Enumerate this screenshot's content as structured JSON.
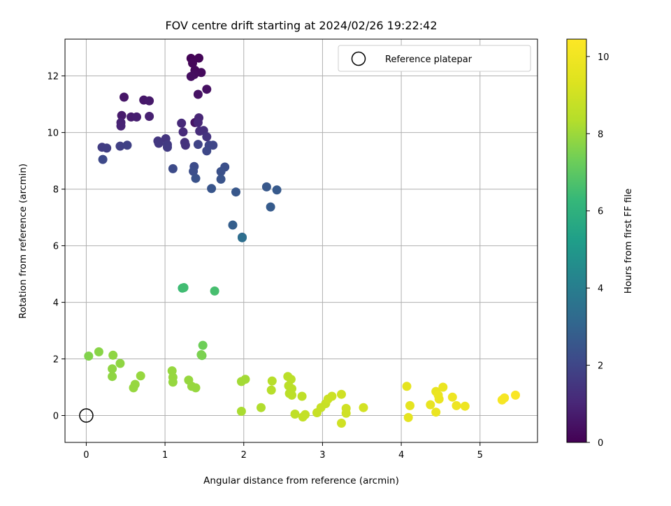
{
  "chart_data": {
    "type": "scatter",
    "title": "FOV centre drift starting at 2024/02/26 19:22:42",
    "xlabel": "Angular distance from reference (arcmin)",
    "ylabel": "Rotation from reference (arcmin)",
    "xlim": [
      -0.27,
      5.73
    ],
    "ylim": [
      -0.95,
      13.3
    ],
    "xticks": [
      "0",
      "1",
      "2",
      "3",
      "4",
      "5"
    ],
    "yticks": [
      "0",
      "2",
      "4",
      "6",
      "8",
      "10",
      "12"
    ],
    "grid": true,
    "legend": {
      "position": "top-right",
      "entries": [
        "Reference platepar"
      ]
    },
    "reference": {
      "x": 0,
      "y": 0
    },
    "colorbar": {
      "label": "Hours from first FF file",
      "range": [
        0,
        10.45
      ],
      "ticks": [
        "0",
        "2",
        "4",
        "6",
        "8",
        "10"
      ],
      "colormap": "viridis"
    },
    "points": [
      [
        1.33,
        12.62,
        0.05
      ],
      [
        1.43,
        12.63,
        0.1
      ],
      [
        1.35,
        12.45,
        0.15
      ],
      [
        1.38,
        12.2,
        0.2
      ],
      [
        1.46,
        12.12,
        0.25
      ],
      [
        1.37,
        12.05,
        0.3
      ],
      [
        1.33,
        11.98,
        0.35
      ],
      [
        1.53,
        11.53,
        0.4
      ],
      [
        1.42,
        11.35,
        0.45
      ],
      [
        1.38,
        10.35,
        0.5
      ],
      [
        0.48,
        11.25,
        0.55
      ],
      [
        0.73,
        11.15,
        0.6
      ],
      [
        0.8,
        11.12,
        0.65
      ],
      [
        0.45,
        10.6,
        0.7
      ],
      [
        0.57,
        10.55,
        0.75
      ],
      [
        0.64,
        10.55,
        0.8
      ],
      [
        0.8,
        10.57,
        0.85
      ],
      [
        0.44,
        10.35,
        0.9
      ],
      [
        0.44,
        10.23,
        0.95
      ],
      [
        1.43,
        10.52,
        1.0
      ],
      [
        1.42,
        10.35,
        1.05
      ],
      [
        1.21,
        10.33,
        1.1
      ],
      [
        1.23,
        10.02,
        1.15
      ],
      [
        1.44,
        10.05,
        1.2
      ],
      [
        1.49,
        10.07,
        1.25
      ],
      [
        1.25,
        9.65,
        1.3
      ],
      [
        1.26,
        9.55,
        1.35
      ],
      [
        1.53,
        9.85,
        1.4
      ],
      [
        1.01,
        9.78,
        1.45
      ],
      [
        0.91,
        9.7,
        1.5
      ],
      [
        0.92,
        9.62,
        1.55
      ],
      [
        1.03,
        9.57,
        1.6
      ],
      [
        1.03,
        9.48,
        1.65
      ],
      [
        0.2,
        9.48,
        1.7
      ],
      [
        0.26,
        9.45,
        1.75
      ],
      [
        0.43,
        9.52,
        1.8
      ],
      [
        0.52,
        9.55,
        1.85
      ],
      [
        1.42,
        9.58,
        1.9
      ],
      [
        1.56,
        9.55,
        1.95
      ],
      [
        1.61,
        9.55,
        2.0
      ],
      [
        1.53,
        9.35,
        2.05
      ],
      [
        0.21,
        9.05,
        2.1
      ],
      [
        1.1,
        8.72,
        2.15
      ],
      [
        1.37,
        8.8,
        2.2
      ],
      [
        1.36,
        8.63,
        2.25
      ],
      [
        1.76,
        8.78,
        2.3
      ],
      [
        1.71,
        8.62,
        2.35
      ],
      [
        1.39,
        8.38,
        2.4
      ],
      [
        1.71,
        8.35,
        2.45
      ],
      [
        1.59,
        8.02,
        2.5
      ],
      [
        1.9,
        7.9,
        2.55
      ],
      [
        2.29,
        8.08,
        2.6
      ],
      [
        2.42,
        7.97,
        2.65
      ],
      [
        2.34,
        7.37,
        2.7
      ],
      [
        1.86,
        6.73,
        2.8
      ],
      [
        1.98,
        6.3,
        3.0
      ],
      [
        1.98,
        6.28,
        3.4
      ],
      [
        1.22,
        4.5,
        6.4
      ],
      [
        1.24,
        4.52,
        6.5
      ],
      [
        1.63,
        4.4,
        6.6
      ],
      [
        1.48,
        2.48,
        7.3
      ],
      [
        1.47,
        2.12,
        7.4
      ],
      [
        1.46,
        2.15,
        7.5
      ],
      [
        0.03,
        2.1,
        7.6
      ],
      [
        0.16,
        2.25,
        7.7
      ],
      [
        0.34,
        2.13,
        7.8
      ],
      [
        0.43,
        1.84,
        7.8
      ],
      [
        0.33,
        1.65,
        7.8
      ],
      [
        0.33,
        1.38,
        7.8
      ],
      [
        1.09,
        1.58,
        7.9
      ],
      [
        1.1,
        1.35,
        7.9
      ],
      [
        1.1,
        1.18,
        7.9
      ],
      [
        1.3,
        1.25,
        7.9
      ],
      [
        1.34,
        1.03,
        7.9
      ],
      [
        1.39,
        0.98,
        7.9
      ],
      [
        0.69,
        1.4,
        7.9
      ],
      [
        0.62,
        1.1,
        7.9
      ],
      [
        0.6,
        0.98,
        7.9
      ],
      [
        1.97,
        1.2,
        8.1
      ],
      [
        2.02,
        1.28,
        8.1
      ],
      [
        1.97,
        0.15,
        8.2
      ],
      [
        2.22,
        0.28,
        8.3
      ],
      [
        2.35,
        0.9,
        8.4
      ],
      [
        2.36,
        1.22,
        8.4
      ],
      [
        2.56,
        1.38,
        8.5
      ],
      [
        2.6,
        1.28,
        8.5
      ],
      [
        2.57,
        1.05,
        8.5
      ],
      [
        2.61,
        0.95,
        8.5
      ],
      [
        2.58,
        0.78,
        8.5
      ],
      [
        2.61,
        0.72,
        8.5
      ],
      [
        2.74,
        0.68,
        8.6
      ],
      [
        2.65,
        0.05,
        8.6
      ],
      [
        2.75,
        -0.05,
        8.7
      ],
      [
        2.78,
        0.03,
        8.7
      ],
      [
        2.93,
        0.1,
        8.8
      ],
      [
        2.98,
        0.28,
        8.8
      ],
      [
        3.04,
        0.42,
        8.8
      ],
      [
        3.07,
        0.58,
        8.9
      ],
      [
        3.12,
        0.68,
        8.9
      ],
      [
        3.24,
        0.75,
        9.0
      ],
      [
        3.3,
        0.25,
        9.0
      ],
      [
        3.3,
        0.08,
        9.0
      ],
      [
        3.24,
        -0.27,
        9.0
      ],
      [
        3.52,
        0.28,
        9.1
      ],
      [
        4.07,
        1.03,
        9.6
      ],
      [
        4.11,
        0.35,
        9.6
      ],
      [
        4.09,
        -0.07,
        9.6
      ],
      [
        4.37,
        0.38,
        9.7
      ],
      [
        4.44,
        0.85,
        9.7
      ],
      [
        4.53,
        1.0,
        9.8
      ],
      [
        4.48,
        0.58,
        9.8
      ],
      [
        4.47,
        0.72,
        9.8
      ],
      [
        4.44,
        0.12,
        9.8
      ],
      [
        4.65,
        0.65,
        9.9
      ],
      [
        4.7,
        0.35,
        9.9
      ],
      [
        4.81,
        0.33,
        9.9
      ],
      [
        5.28,
        0.55,
        10.2
      ],
      [
        5.31,
        0.62,
        10.2
      ],
      [
        5.45,
        0.72,
        10.3
      ]
    ]
  }
}
